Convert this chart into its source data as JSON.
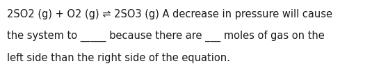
{
  "lines": [
    "2SO2 (g) + O2 (g) ⇌ 2SO3 (g) A decrease in pressure will cause",
    "the system to _____ because there are ___ moles of gas on the",
    "left side than the right side of the equation."
  ],
  "background_color": "#ffffff",
  "text_color": "#1a1a1a",
  "font_size": 10.5,
  "fig_width": 5.58,
  "fig_height": 1.05,
  "dpi": 100
}
